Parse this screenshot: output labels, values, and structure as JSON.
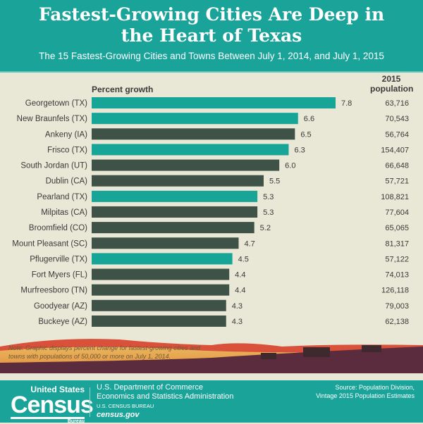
{
  "header": {
    "title": "Fastest-Growing Cities Are Deep in the Heart of Texas",
    "subtitle": "The 15 Fastest-Growing Cities and Towns Between July 1, 2014, and July 1, 2015"
  },
  "chart_data": {
    "type": "bar",
    "orientation": "horizontal",
    "title": "Fastest-Growing Cities Are Deep in the Heart of Texas",
    "xlabel": "Percent growth",
    "population_label": "2015 population",
    "categories": [
      "Georgetown (TX)",
      "New Braunfels (TX)",
      "Ankeny (IA)",
      "Frisco (TX)",
      "South Jordan (UT)",
      "Dublin (CA)",
      "Pearland (TX)",
      "Milpitas (CA)",
      "Broomfield (CO)",
      "Mount Pleasant (SC)",
      "Pflugerville (TX)",
      "Fort Myers (FL)",
      "Murfreesboro (TN)",
      "Goodyear (AZ)",
      "Buckeye (AZ)"
    ],
    "values": [
      7.8,
      6.6,
      6.5,
      6.3,
      6.0,
      5.5,
      5.3,
      5.3,
      5.2,
      4.7,
      4.5,
      4.4,
      4.4,
      4.3,
      4.3
    ],
    "value_labels": [
      "7.8",
      "6.6",
      "6.5",
      "6.3",
      "6.0",
      "5.5",
      "5.3",
      "5.3",
      "5.2",
      "4.7",
      "4.5",
      "4.4",
      "4.4",
      "4.3",
      "4.3"
    ],
    "population": [
      "63,716",
      "70,543",
      "56,764",
      "154,407",
      "66,648",
      "57,721",
      "108,821",
      "77,604",
      "65,065",
      "81,317",
      "57,122",
      "74,013",
      "126,118",
      "79,003",
      "62,138"
    ],
    "texas": [
      true,
      true,
      false,
      true,
      false,
      false,
      true,
      false,
      false,
      false,
      true,
      false,
      false,
      false,
      false
    ],
    "colors": {
      "texas": "#17a597",
      "other": "#3e5248"
    },
    "grid": false
  },
  "note": "Note: Graphic displays percent change for fastest-growing cities and towns with populations of 50,000 or more on July 1, 2014.",
  "footer": {
    "logo_top": "United States",
    "logo_main": "Census",
    "logo_bottom": "Bureau",
    "dept": "U.S. Department of Commerce",
    "esa": "Economics and Statistics Administration",
    "bureau": "U.S. CENSUS BUREAU",
    "site": "census.gov",
    "source1": "Source: Population Division,",
    "source2": "Vintage 2015 Population Estimates"
  }
}
